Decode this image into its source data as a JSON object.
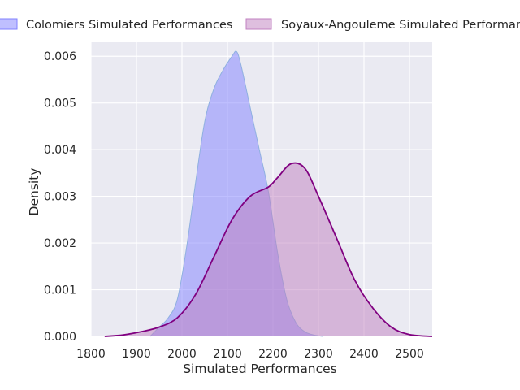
{
  "chart_data": {
    "type": "area",
    "title": "",
    "xlabel": "Simulated Performances",
    "ylabel": "Density",
    "xlim": [
      1800,
      2550
    ],
    "ylim": [
      0,
      0.0063
    ],
    "xticks": [
      "1800",
      "1900",
      "2000",
      "2100",
      "2200",
      "2300",
      "2400",
      "2500"
    ],
    "yticks": [
      "0.000",
      "0.001",
      "0.002",
      "0.003",
      "0.004",
      "0.005",
      "0.006"
    ],
    "grid": true,
    "legend_position": "top",
    "series": [
      {
        "name": "Colomiers Simulated Performances",
        "fill_color": "#8080ff",
        "line_color": "#8fb0e0",
        "x": [
          1930,
          1950,
          1970,
          1990,
          2010,
          2030,
          2050,
          2070,
          2090,
          2110,
          2120,
          2130,
          2150,
          2170,
          2190,
          2210,
          2230,
          2250,
          2270,
          2290,
          2310
        ],
        "y": [
          0.0,
          0.0002,
          0.0004,
          0.0008,
          0.0019,
          0.0033,
          0.0046,
          0.0053,
          0.0057,
          0.006,
          0.0061,
          0.0058,
          0.0049,
          0.004,
          0.0031,
          0.0018,
          0.0008,
          0.0003,
          0.0001,
          3e-05,
          0.0
        ]
      },
      {
        "name": "Soyaux-Angouleme Simulated Performances",
        "fill_color": "#c080c0",
        "line_color": "#800080",
        "x": [
          1830,
          1870,
          1910,
          1950,
          1990,
          2030,
          2070,
          2110,
          2150,
          2190,
          2210,
          2240,
          2270,
          2300,
          2340,
          2380,
          2420,
          2460,
          2500,
          2550
        ],
        "y": [
          0.0,
          3e-05,
          0.0001,
          0.0002,
          0.0004,
          0.0009,
          0.0017,
          0.0025,
          0.003,
          0.0032,
          0.0034,
          0.0037,
          0.0036,
          0.003,
          0.0021,
          0.0012,
          0.0006,
          0.0002,
          4e-05,
          0.0
        ]
      }
    ]
  }
}
